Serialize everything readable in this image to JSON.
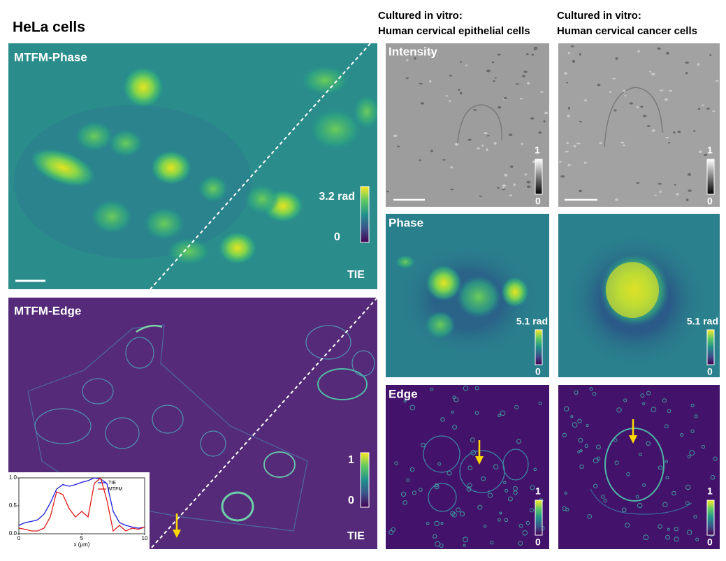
{
  "title": "HeLa cells",
  "columns": [
    {
      "line1": "Cultured in vitro:",
      "line2": "Human cervical epithelial cells"
    },
    {
      "line1": "Cultured in vitro:",
      "line2": "Human cervical cancer cells"
    }
  ],
  "left_panels": [
    {
      "label": "MTFM-Phase",
      "colorbar_max": "3.2 rad",
      "colorbar_min": "0",
      "comparison_label": "TIE"
    },
    {
      "label": "MTFM-Edge",
      "colorbar_max": "1",
      "colorbar_min": "0",
      "comparison_label": "TIE"
    }
  ],
  "right_rows": [
    {
      "label": "Intensity",
      "colorbar_max": "1",
      "colorbar_min": "0"
    },
    {
      "label": "Phase",
      "colorbar_max": "5.1 rad",
      "colorbar_min": "0"
    },
    {
      "label": "Edge",
      "colorbar_max": "1",
      "colorbar_min": "0"
    }
  ],
  "inset_chart": {
    "type": "line",
    "x_label": "x (μm)",
    "x": [
      0,
      0.5,
      1,
      1.5,
      2,
      2.5,
      3,
      3.5,
      4,
      4.5,
      5,
      5.5,
      6,
      6.5,
      7,
      7.5,
      8,
      8.5,
      9,
      9.5,
      10
    ],
    "series": [
      {
        "name": "TIE",
        "color": "#1c1cdc",
        "values": [
          0.15,
          0.2,
          0.22,
          0.25,
          0.35,
          0.55,
          0.8,
          0.88,
          0.85,
          0.88,
          0.92,
          0.95,
          1.0,
          0.98,
          0.9,
          0.4,
          0.2,
          0.15,
          0.12,
          0.1,
          0.12
        ]
      },
      {
        "name": "MTFM",
        "color": "#e01c1c",
        "values": [
          0.1,
          0.08,
          0.05,
          0.05,
          0.1,
          0.3,
          0.75,
          0.7,
          0.45,
          0.3,
          0.4,
          0.3,
          0.9,
          1.0,
          0.6,
          0.05,
          0.15,
          0.05,
          0.1,
          0.08,
          0.12
        ]
      }
    ],
    "xlim": [
      0,
      10
    ],
    "ylim": [
      0,
      1
    ],
    "xticks": [
      0,
      5,
      10
    ],
    "yticks": [
      {
        "value": 0,
        "label": "0.0"
      },
      {
        "value": 0.5,
        "label": "0.5"
      },
      {
        "value": 1,
        "label": "1.0"
      }
    ]
  }
}
